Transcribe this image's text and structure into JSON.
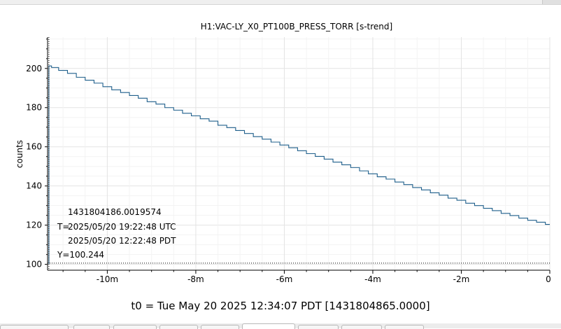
{
  "chart_data": {
    "type": "line",
    "title": "H1:VAC-LY_X0_PT100B_PRESS_TORR [s-trend]",
    "xlabel": "",
    "ylabel": "counts",
    "x_unit": "minutes relative to t0",
    "xlim": [
      -11.35,
      0
    ],
    "ylim": [
      97,
      216
    ],
    "x_ticks": [
      -10,
      -8,
      -6,
      -4,
      -2,
      0
    ],
    "x_tick_labels": [
      "-10m",
      "-8m",
      "-6m",
      "-4m",
      "-2m",
      "0"
    ],
    "y_ticks": [
      100,
      120,
      140,
      160,
      180,
      200
    ],
    "y_tick_labels": [
      "100",
      "120",
      "140",
      "160",
      "180",
      "200"
    ],
    "grid": true,
    "legend": "none",
    "series": [
      {
        "color": "#1f5f8b",
        "x": [
          -11.32,
          -11.2,
          -11.0,
          -10.8,
          -10.6,
          -10.4,
          -10.2,
          -10.0,
          -9.8,
          -9.6,
          -9.4,
          -9.2,
          -9.0,
          -8.8,
          -8.6,
          -8.4,
          -8.2,
          -8.0,
          -7.8,
          -7.6,
          -7.4,
          -7.2,
          -7.0,
          -6.8,
          -6.6,
          -6.4,
          -6.2,
          -6.0,
          -5.8,
          -5.6,
          -5.4,
          -5.2,
          -5.0,
          -4.8,
          -4.6,
          -4.4,
          -4.2,
          -4.0,
          -3.8,
          -3.6,
          -3.4,
          -3.2,
          -3.0,
          -2.8,
          -2.6,
          -2.4,
          -2.2,
          -2.0,
          -1.8,
          -1.6,
          -1.4,
          -1.2,
          -1.0,
          -0.8,
          -0.6,
          -0.4,
          -0.2,
          0.0
        ],
        "y": [
          201.3,
          200.5,
          199.0,
          197.5,
          195.5,
          194.0,
          192.5,
          190.7,
          189.1,
          187.7,
          186.2,
          184.8,
          183.0,
          181.8,
          180.0,
          178.7,
          177.1,
          175.8,
          174.3,
          173.1,
          171.0,
          169.8,
          168.3,
          166.8,
          165.2,
          163.9,
          162.4,
          160.9,
          159.5,
          158.0,
          156.5,
          155.1,
          153.7,
          152.2,
          150.8,
          149.4,
          147.7,
          146.2,
          144.7,
          143.5,
          142.0,
          140.7,
          139.2,
          138.0,
          136.5,
          135.3,
          133.8,
          132.7,
          131.2,
          130.0,
          128.6,
          127.4,
          126.0,
          124.9,
          123.6,
          122.5,
          121.5,
          120.4
        ]
      }
    ],
    "cursor": {
      "x": -11.32,
      "y": 100.244,
      "gps": "1431804186.0019574",
      "utc_prefix": "T=",
      "utc": "2025/05/20 19:22:48 UTC",
      "pdt": "2025/05/20 12:22:48 PDT",
      "y_label": "Y=100.244"
    },
    "t0_text": "t0 = Tue May 20 2025 12:34:07 PDT [1431804865.0000]"
  }
}
